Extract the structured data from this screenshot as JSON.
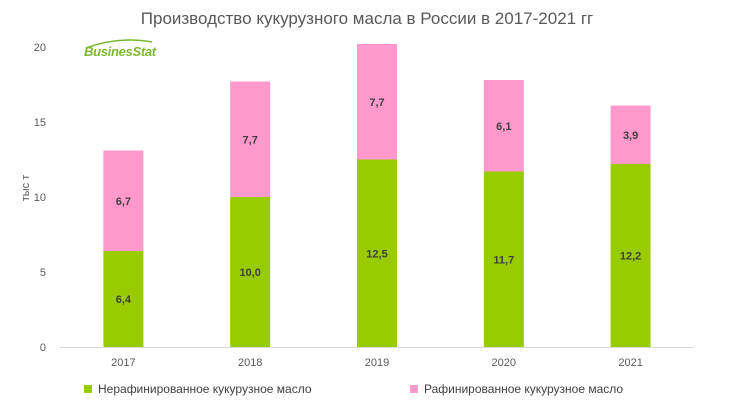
{
  "brand": "BusinesStat",
  "colors": {
    "unrefined": "#99cc00",
    "refined": "#ff99cc",
    "axis_text": "#595959"
  },
  "chart_data": {
    "type": "bar",
    "stacked": true,
    "title": "Производство кукурузного масла в России в 2017-2021 гг",
    "xlabel": "",
    "ylabel": "тыс т",
    "ylim": [
      0,
      20
    ],
    "yticks": [
      0,
      5,
      10,
      15,
      20
    ],
    "grid": false,
    "legend_position": "bottom",
    "categories": [
      "2017",
      "2018",
      "2019",
      "2020",
      "2021"
    ],
    "series": [
      {
        "name": "Нерафинированное кукурузное масло",
        "values": [
          6.4,
          10.0,
          12.5,
          11.7,
          12.2
        ],
        "labels": [
          "6,4",
          "10,0",
          "12,5",
          "11,7",
          "12,2"
        ]
      },
      {
        "name": "Рафинированное кукурузное масло",
        "values": [
          6.7,
          7.7,
          7.7,
          6.1,
          3.9
        ],
        "labels": [
          "6,7",
          "7,7",
          "7,7",
          "6,1",
          "3,9"
        ]
      }
    ]
  }
}
